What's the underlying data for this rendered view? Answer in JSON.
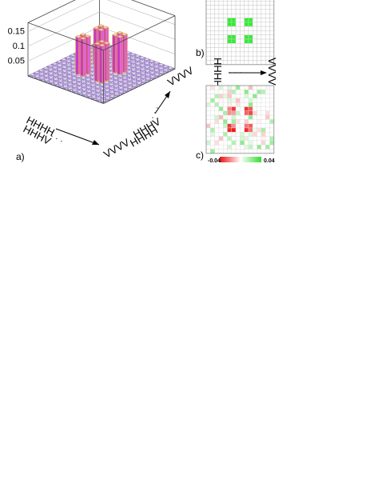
{
  "panels": {
    "a_label": "a)",
    "b_label": "b)",
    "c_label": "c)"
  },
  "axes": {
    "row_basis_first": "HHHH",
    "row_basis_second": "HHHV",
    "row_basis_last": "VVVV",
    "col_basis_first": "HHHH",
    "col_basis_second": "HHHV",
    "col_basis_last": "VVVV",
    "ellipsis": "· · ·"
  },
  "colors": {
    "bar_top": "#f4c8f4",
    "bar_left": "#e25ce2",
    "bar_right": "#c838c8",
    "bar_edge": "#d8a020",
    "floor_bar": "#c8b0e8",
    "ideal_on": "#33ee33",
    "grid_line": "#cccccc",
    "negative": "#ee1111",
    "positive": "#33dd33"
  },
  "colorbar": {
    "min_label": "-0.04",
    "max_label": "0.04",
    "min": -0.04,
    "max": 0.04
  },
  "chart_data": [
    {
      "panel": "a)",
      "type": "bar3d",
      "title": "",
      "matrix_size": 16,
      "zlim": [
        0,
        0.18
      ],
      "z_ticks": [
        0.05,
        0.1,
        0.15
      ],
      "z_tick_labels": [
        "0.05",
        "0.1",
        "0.15"
      ],
      "grid": true,
      "peak_value": 0.125,
      "nonzero_indices": [
        5,
        6,
        9,
        10
      ],
      "note_values": "16x16 matrix: elements with row and column both in {5,6,9,10} equal ~0.125; all others ~0"
    },
    {
      "panel": "b)",
      "type": "heatmap",
      "matrix_size": 16,
      "on_indices": [
        5,
        6,
        9,
        10
      ],
      "on_value": 0.125,
      "x_tick_labels": [
        "HHHH",
        "VVVV"
      ],
      "y_tick_labels": [
        "HHHH",
        "VVVV"
      ]
    },
    {
      "panel": "c)",
      "type": "heatmap",
      "matrix_size": 16,
      "color_range": [
        -0.04,
        0.04
      ],
      "note_values": "residual matrix; strongest negative cells in the central block, weak positive scattered cells"
    }
  ]
}
